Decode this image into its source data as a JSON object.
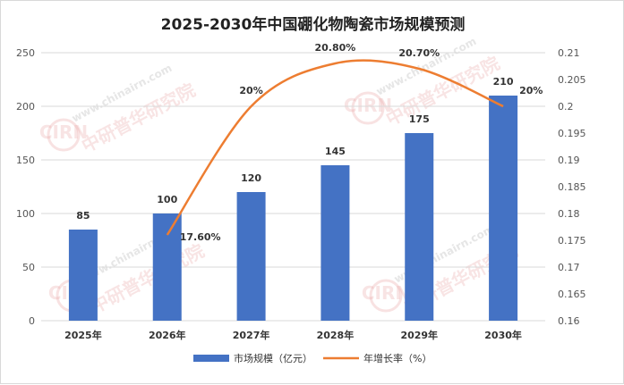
{
  "chart_data": {
    "type": "bar",
    "title": "2025-2030年中国硼化物陶瓷市场规模预测",
    "categories": [
      "2025年",
      "2026年",
      "2027年",
      "2028年",
      "2029年",
      "2030年"
    ],
    "series": [
      {
        "name": "市场规模（亿元）",
        "type": "bar",
        "axis": "left",
        "color": "#4472c4",
        "values": [
          85,
          100,
          120,
          145,
          175,
          210
        ],
        "labels": [
          "85",
          "100",
          "120",
          "145",
          "175",
          "210"
        ]
      },
      {
        "name": "年增长率（%）",
        "type": "line",
        "axis": "right",
        "color": "#ed7d31",
        "values": [
          null,
          0.176,
          0.2,
          0.208,
          0.207,
          0.2
        ],
        "labels": [
          "",
          "17.60%",
          "20%",
          "20.80%",
          "20.70%",
          "20%"
        ]
      }
    ],
    "ylim": [
      0,
      250
    ],
    "y_ticks": [
      "0",
      "50",
      "100",
      "150",
      "200",
      "250"
    ],
    "y2lim": [
      0.16,
      0.21
    ],
    "y2_ticks": [
      "0.16",
      "0.165",
      "0.17",
      "0.175",
      "0.18",
      "0.185",
      "0.19",
      "0.195",
      "0.2",
      "0.205",
      "0.21"
    ],
    "grid": true,
    "legend_position": "bottom"
  },
  "watermark": {
    "url": "www.chinairn.com",
    "org": "中研普华研究院",
    "logo": "CIRN"
  }
}
